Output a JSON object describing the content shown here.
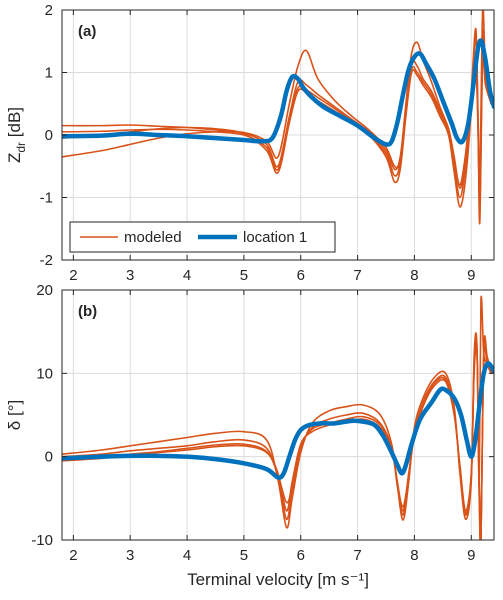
{
  "chart_data": [
    {
      "panel_tag": "(a)",
      "type": "line",
      "xlabel": "Terminal velocity [m s⁻¹]",
      "ylabel_main": "Z",
      "ylabel_sub": "dr",
      "ylabel_unit": " [dB]",
      "xlim": [
        1.8,
        9.4
      ],
      "ylim": [
        -2,
        2
      ],
      "xticks": [
        2,
        3,
        4,
        5,
        6,
        7,
        8,
        9
      ],
      "yticks": [
        -2,
        -1,
        0,
        1,
        2
      ],
      "grid": true,
      "legend": {
        "placement": "bottom-left",
        "entries": [
          "modeled",
          "location 1"
        ]
      },
      "colors": {
        "modeled": "#d95319",
        "location": "#0072bd"
      },
      "series": [
        {
          "name": "modeled",
          "x": [
            1.8,
            2.5,
            3.0,
            3.5,
            4.0,
            4.5,
            5.0,
            5.4,
            5.6,
            5.8,
            5.95,
            6.1,
            6.3,
            6.6,
            6.9,
            7.2,
            7.5,
            7.65,
            7.75,
            7.85,
            7.95,
            8.05,
            8.15,
            8.3,
            8.45,
            8.6,
            8.7,
            8.8,
            8.9,
            9.0,
            9.08,
            9.12,
            9.15,
            9.2,
            9.25,
            9.35
          ],
          "y": [
            0.15,
            0.15,
            0.16,
            0.14,
            0.12,
            0.08,
            0.03,
            -0.15,
            -0.5,
            0.3,
            0.85,
            0.8,
            0.65,
            0.45,
            0.25,
            0.05,
            -0.25,
            -0.55,
            -0.35,
            0.45,
            1.15,
            1.1,
            0.9,
            0.7,
            0.4,
            0.1,
            -0.4,
            -0.8,
            -0.3,
            0.6,
            1.1,
            0.2,
            -1.2,
            1.2,
            0.8,
            0.5
          ]
        },
        {
          "name": "modeled",
          "x": [
            1.8,
            2.5,
            3.0,
            3.5,
            4.0,
            4.5,
            5.0,
            5.4,
            5.6,
            5.8,
            5.95,
            6.1,
            6.3,
            6.6,
            6.9,
            7.2,
            7.5,
            7.65,
            7.75,
            7.85,
            7.95,
            8.05,
            8.15,
            8.3,
            8.45,
            8.6,
            8.7,
            8.8,
            8.9,
            9.0,
            9.08,
            9.12,
            9.15,
            9.2,
            9.25,
            9.35
          ],
          "y": [
            0.05,
            0.06,
            0.08,
            0.09,
            0.08,
            0.05,
            0.0,
            -0.2,
            -0.55,
            0.25,
            0.75,
            0.72,
            0.6,
            0.42,
            0.22,
            0.02,
            -0.3,
            -0.65,
            -0.45,
            0.35,
            1.05,
            1.0,
            0.85,
            0.65,
            0.35,
            0.05,
            -0.5,
            -1.0,
            -0.5,
            0.5,
            1.0,
            0.1,
            -1.4,
            1.3,
            0.9,
            0.5
          ]
        },
        {
          "name": "modeled",
          "x": [
            1.8,
            2.5,
            3.0,
            3.5,
            4.0,
            4.5,
            5.0,
            5.4,
            5.6,
            5.8,
            5.95,
            6.1,
            6.3,
            6.6,
            6.9,
            7.2,
            7.5,
            7.65,
            7.75,
            7.85,
            7.95,
            8.05,
            8.15,
            8.3,
            8.45,
            8.6,
            8.7,
            8.8,
            8.9,
            9.0,
            9.08,
            9.12,
            9.15,
            9.2,
            9.25,
            9.35
          ],
          "y": [
            -0.05,
            0.0,
            0.05,
            0.1,
            0.12,
            0.1,
            0.02,
            -0.25,
            -0.6,
            0.2,
            0.7,
            0.68,
            0.55,
            0.38,
            0.2,
            0.0,
            -0.35,
            -0.75,
            -0.55,
            0.3,
            1.0,
            0.95,
            0.8,
            0.6,
            0.3,
            0.0,
            -0.6,
            -1.15,
            -0.7,
            0.4,
            1.6,
            0.0,
            -1.0,
            1.6,
            1.0,
            0.5
          ]
        },
        {
          "name": "modeled",
          "x": [
            1.8,
            2.5,
            3.0,
            3.5,
            4.0,
            4.5,
            5.0,
            5.4,
            5.6,
            5.8,
            5.95,
            6.1,
            6.3,
            6.6,
            6.9,
            7.2,
            7.5,
            7.65,
            7.75,
            7.85,
            7.95,
            8.05,
            8.15,
            8.3,
            8.45,
            8.6,
            8.7,
            8.8,
            8.9,
            9.0,
            9.08,
            9.12,
            9.15,
            9.2,
            9.25,
            9.35
          ],
          "y": [
            -0.35,
            -0.25,
            -0.15,
            -0.05,
            0.02,
            0.05,
            0.04,
            -0.1,
            -0.35,
            0.5,
            1.1,
            1.35,
            0.9,
            0.55,
            0.3,
            0.08,
            -0.2,
            -0.5,
            -0.4,
            0.5,
            1.3,
            1.48,
            1.2,
            0.85,
            0.45,
            0.1,
            -0.35,
            -0.85,
            -0.4,
            0.7,
            1.7,
            0.3,
            -0.8,
            2.0,
            1.1,
            0.5
          ]
        },
        {
          "name": "location 1",
          "x": [
            1.8,
            2.5,
            3.0,
            3.5,
            4.0,
            4.5,
            5.0,
            5.3,
            5.5,
            5.65,
            5.75,
            5.85,
            5.95,
            6.05,
            6.2,
            6.4,
            6.7,
            7.0,
            7.3,
            7.5,
            7.6,
            7.7,
            7.8,
            7.9,
            8.0,
            8.1,
            8.2,
            8.35,
            8.5,
            8.65,
            8.75,
            8.85,
            8.95,
            9.05,
            9.12,
            9.18,
            9.25,
            9.33,
            9.4
          ],
          "y": [
            -0.02,
            -0.01,
            0.02,
            0.0,
            -0.02,
            -0.05,
            -0.08,
            -0.1,
            -0.05,
            0.3,
            0.7,
            0.93,
            0.9,
            0.75,
            0.6,
            0.45,
            0.3,
            0.15,
            -0.05,
            -0.15,
            -0.1,
            0.2,
            0.65,
            1.05,
            1.25,
            1.3,
            1.15,
            0.9,
            0.55,
            0.2,
            -0.05,
            -0.1,
            0.2,
            0.9,
            1.4,
            1.5,
            1.2,
            0.7,
            0.45
          ]
        }
      ]
    },
    {
      "panel_tag": "(b)",
      "type": "line",
      "xlabel": "Terminal velocity [m s⁻¹]",
      "ylabel": "δ [°]",
      "xlim": [
        1.8,
        9.4
      ],
      "ylim": [
        -10,
        20
      ],
      "xticks": [
        2,
        3,
        4,
        5,
        6,
        7,
        8,
        9
      ],
      "yticks": [
        -10,
        0,
        10,
        20
      ],
      "grid": true,
      "series": [
        {
          "name": "modeled",
          "x": [
            1.8,
            2.5,
            3.0,
            3.5,
            4.0,
            4.5,
            5.0,
            5.4,
            5.6,
            5.75,
            5.85,
            6.0,
            6.2,
            6.5,
            6.8,
            7.1,
            7.4,
            7.6,
            7.7,
            7.8,
            7.9,
            8.0,
            8.15,
            8.35,
            8.55,
            8.7,
            8.8,
            8.9,
            9.0,
            9.05,
            9.1,
            9.14,
            9.17,
            9.22,
            9.28,
            9.35
          ],
          "y": [
            -0.5,
            -0.2,
            0.2,
            0.5,
            0.8,
            1.2,
            1.3,
            0.5,
            -2.0,
            -6.5,
            -3.0,
            1.5,
            3.0,
            3.8,
            4.2,
            4.5,
            3.5,
            1.0,
            -3.0,
            -6.5,
            -2.0,
            2.5,
            6.0,
            8.5,
            9.0,
            5.0,
            -1.0,
            -6.5,
            -2.0,
            10.0,
            12.5,
            -3.0,
            -9.5,
            12.0,
            11.0,
            10.0
          ]
        },
        {
          "name": "modeled",
          "x": [
            1.8,
            2.5,
            3.0,
            3.5,
            4.0,
            4.5,
            5.0,
            5.4,
            5.6,
            5.75,
            5.85,
            6.0,
            6.2,
            6.5,
            6.8,
            7.1,
            7.4,
            7.6,
            7.7,
            7.8,
            7.9,
            8.0,
            8.15,
            8.35,
            8.55,
            8.7,
            8.8,
            8.9,
            9.0,
            9.05,
            9.1,
            9.14,
            9.17,
            9.22,
            9.28,
            9.35
          ],
          "y": [
            0.0,
            0.3,
            0.7,
            1.0,
            1.3,
            1.8,
            2.0,
            1.0,
            -2.5,
            -7.5,
            -4.0,
            1.0,
            3.5,
            4.5,
            5.0,
            5.2,
            4.0,
            1.0,
            -3.5,
            -7.0,
            -2.5,
            3.0,
            6.5,
            9.0,
            9.5,
            5.5,
            -1.5,
            -7.0,
            -2.5,
            11.0,
            13.0,
            -4.0,
            -9.8,
            12.5,
            11.5,
            10.0
          ]
        },
        {
          "name": "modeled",
          "x": [
            1.8,
            2.5,
            3.0,
            3.5,
            4.0,
            4.5,
            5.0,
            5.4,
            5.6,
            5.75,
            5.85,
            6.0,
            6.2,
            6.5,
            6.8,
            7.1,
            7.4,
            7.6,
            7.7,
            7.8,
            7.9,
            8.0,
            8.15,
            8.35,
            8.55,
            8.7,
            8.8,
            8.9,
            9.0,
            9.05,
            9.1,
            9.14,
            9.17,
            9.22,
            9.28,
            9.35
          ],
          "y": [
            0.3,
            0.8,
            1.3,
            1.8,
            2.3,
            2.8,
            3.0,
            2.0,
            -2.8,
            -8.5,
            -5.0,
            0.5,
            4.0,
            5.5,
            6.0,
            6.2,
            5.0,
            1.5,
            -3.5,
            -7.6,
            -3.0,
            3.5,
            7.0,
            9.5,
            10.0,
            6.0,
            -2.0,
            -7.5,
            -3.0,
            12.0,
            13.3,
            -5.0,
            -10.0,
            13.0,
            12.0,
            10.0
          ]
        },
        {
          "name": "modeled",
          "x": [
            1.8,
            2.5,
            3.0,
            3.5,
            4.0,
            4.5,
            5.0,
            5.4,
            5.6,
            5.75,
            5.85,
            6.0,
            6.2,
            6.5,
            6.8,
            7.1,
            7.4,
            7.6,
            7.7,
            7.8,
            7.9,
            8.0,
            8.15,
            8.35,
            8.55,
            8.7,
            8.8,
            8.9,
            9.0,
            9.05,
            9.1,
            9.14,
            9.17,
            9.22,
            9.28,
            9.35
          ],
          "y": [
            -0.3,
            0.0,
            0.3,
            0.6,
            1.0,
            1.4,
            1.5,
            0.6,
            -2.2,
            -5.5,
            -3.5,
            1.2,
            3.3,
            4.0,
            4.5,
            4.8,
            3.8,
            1.2,
            -3.2,
            -6.0,
            -2.2,
            2.8,
            6.2,
            8.8,
            9.2,
            5.2,
            -1.2,
            -6.8,
            -2.2,
            10.5,
            12.8,
            -3.5,
            18.7,
            12.3,
            11.2,
            10.0
          ]
        },
        {
          "name": "location 1",
          "x": [
            1.8,
            2.5,
            3.0,
            3.5,
            4.0,
            4.5,
            5.0,
            5.4,
            5.6,
            5.7,
            5.8,
            5.9,
            6.0,
            6.15,
            6.35,
            6.6,
            6.9,
            7.1,
            7.3,
            7.45,
            7.6,
            7.7,
            7.78,
            7.85,
            7.95,
            8.1,
            8.3,
            8.45,
            8.55,
            8.7,
            8.82,
            8.92,
            9.0,
            9.07,
            9.15,
            9.22,
            9.3,
            9.4
          ],
          "y": [
            -0.2,
            0.0,
            0.1,
            0.1,
            0.0,
            -0.3,
            -0.8,
            -1.5,
            -2.5,
            -2.0,
            0.0,
            2.0,
            3.2,
            3.8,
            4.0,
            4.0,
            4.3,
            4.2,
            3.8,
            2.5,
            0.5,
            -1.0,
            -2.0,
            -1.0,
            1.5,
            4.5,
            6.5,
            8.0,
            8.0,
            7.0,
            5.0,
            2.0,
            0.0,
            2.0,
            6.5,
            10.0,
            11.2,
            10.2
          ]
        }
      ]
    }
  ]
}
